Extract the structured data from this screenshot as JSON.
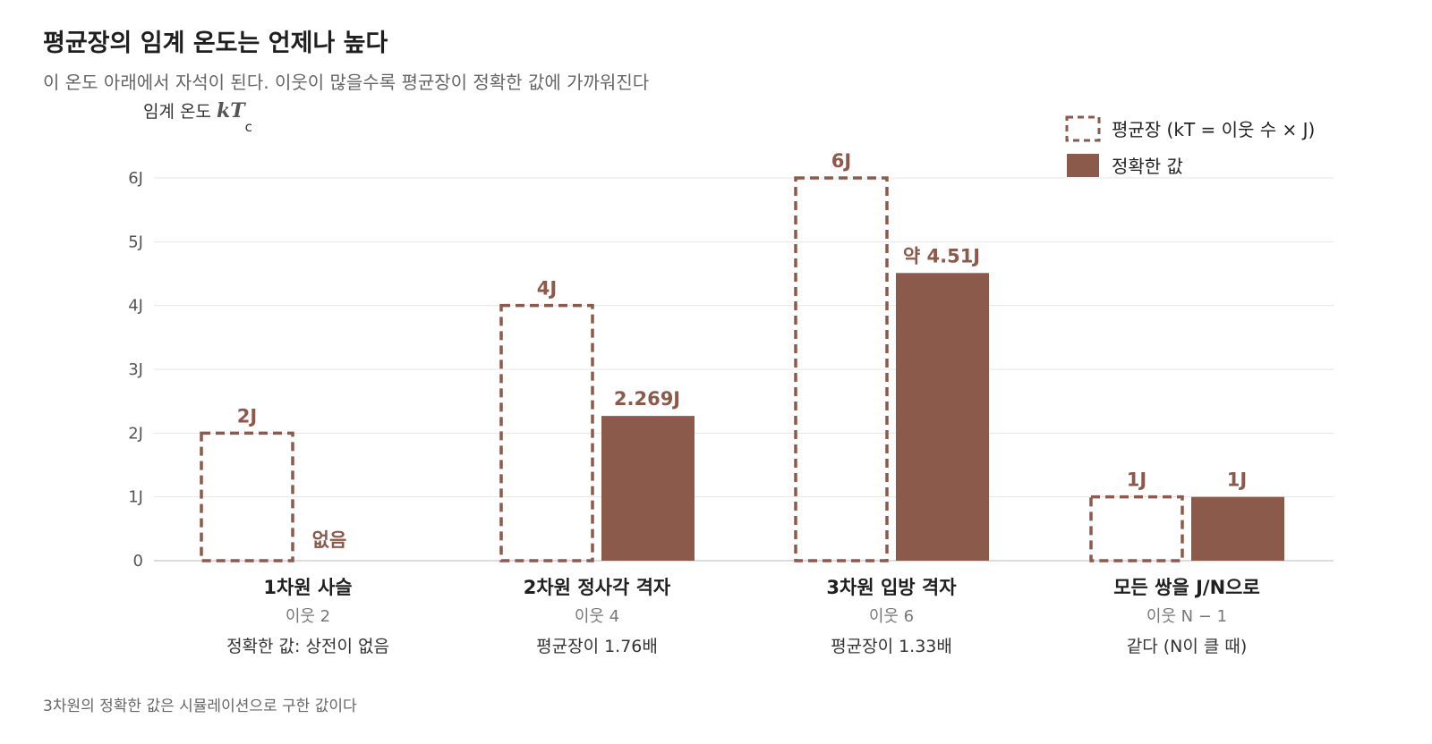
{
  "header": {
    "title": "평균장의 임계 온도는 언제나 높다",
    "subtitle": "이 온도 아래에서 자석이 된다. 이웃이 많을수록 평균장이 정확한 값에 가까워진다"
  },
  "footnote": "3차원의 정확한 값은 시뮬레이션으로 구한 값이다",
  "colors": {
    "accent": "#8b5a4b",
    "grid": "#e4e4e4",
    "text": "#222222",
    "muted": "#777777"
  },
  "chart_data": {
    "type": "bar",
    "ylabel": "임계 온도",
    "ylabel_symbol": "kT",
    "ylabel_subscript": "c",
    "ylim": [
      0,
      6
    ],
    "yticks": [
      {
        "value": 0,
        "label": "0"
      },
      {
        "value": 1,
        "label": "1J"
      },
      {
        "value": 2,
        "label": "2J"
      },
      {
        "value": 3,
        "label": "3J"
      },
      {
        "value": 4,
        "label": "4J"
      },
      {
        "value": 5,
        "label": "5J"
      },
      {
        "value": 6,
        "label": "6J"
      }
    ],
    "grid": true,
    "legend_position": "top-right",
    "series": [
      {
        "name": "평균장 (kT = 이웃 수 × J)",
        "style": "dashed-outline"
      },
      {
        "name": "정확한 값",
        "style": "filled"
      }
    ],
    "categories": [
      {
        "name": "1차원 사슬",
        "neighbors": "이웃 2",
        "note": "정확한 값: 상전이 없음",
        "mean_field": 2,
        "mean_field_label": "2J",
        "exact": null,
        "exact_label": "없음"
      },
      {
        "name": "2차원 정사각 격자",
        "neighbors": "이웃 4",
        "note": "평균장이 1.76배",
        "mean_field": 4,
        "mean_field_label": "4J",
        "exact": 2.269,
        "exact_label": "2.269J"
      },
      {
        "name": "3차원 입방 격자",
        "neighbors": "이웃 6",
        "note": "평균장이 1.33배",
        "mean_field": 6,
        "mean_field_label": "6J",
        "exact": 4.51,
        "exact_label": "약 4.51J"
      },
      {
        "name": "모든 쌍을 J/N으로",
        "neighbors": "이웃 N − 1",
        "note": "같다 (N이 클 때)",
        "mean_field": 1,
        "mean_field_label": "1J",
        "exact": 1,
        "exact_label": "1J"
      }
    ]
  }
}
